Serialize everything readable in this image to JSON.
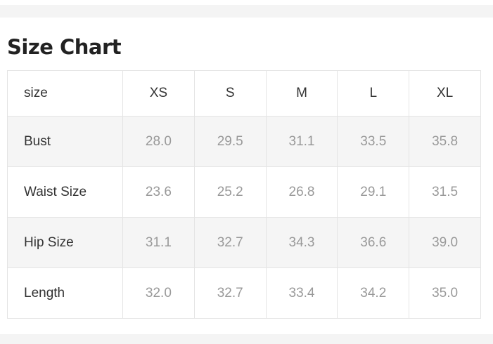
{
  "title": "Size Chart",
  "table": {
    "header": [
      "size",
      "XS",
      "S",
      "M",
      "L",
      "XL"
    ],
    "rows": [
      {
        "label": "Bust",
        "values": [
          "28.0",
          "29.5",
          "31.1",
          "33.5",
          "35.8"
        ]
      },
      {
        "label": "Waist Size",
        "values": [
          "23.6",
          "25.2",
          "26.8",
          "29.1",
          "31.5"
        ]
      },
      {
        "label": "Hip Size",
        "values": [
          "31.1",
          "32.7",
          "34.3",
          "36.6",
          "39.0"
        ]
      },
      {
        "label": "Length",
        "values": [
          "32.0",
          "32.7",
          "33.4",
          "34.2",
          "35.0"
        ]
      }
    ]
  }
}
